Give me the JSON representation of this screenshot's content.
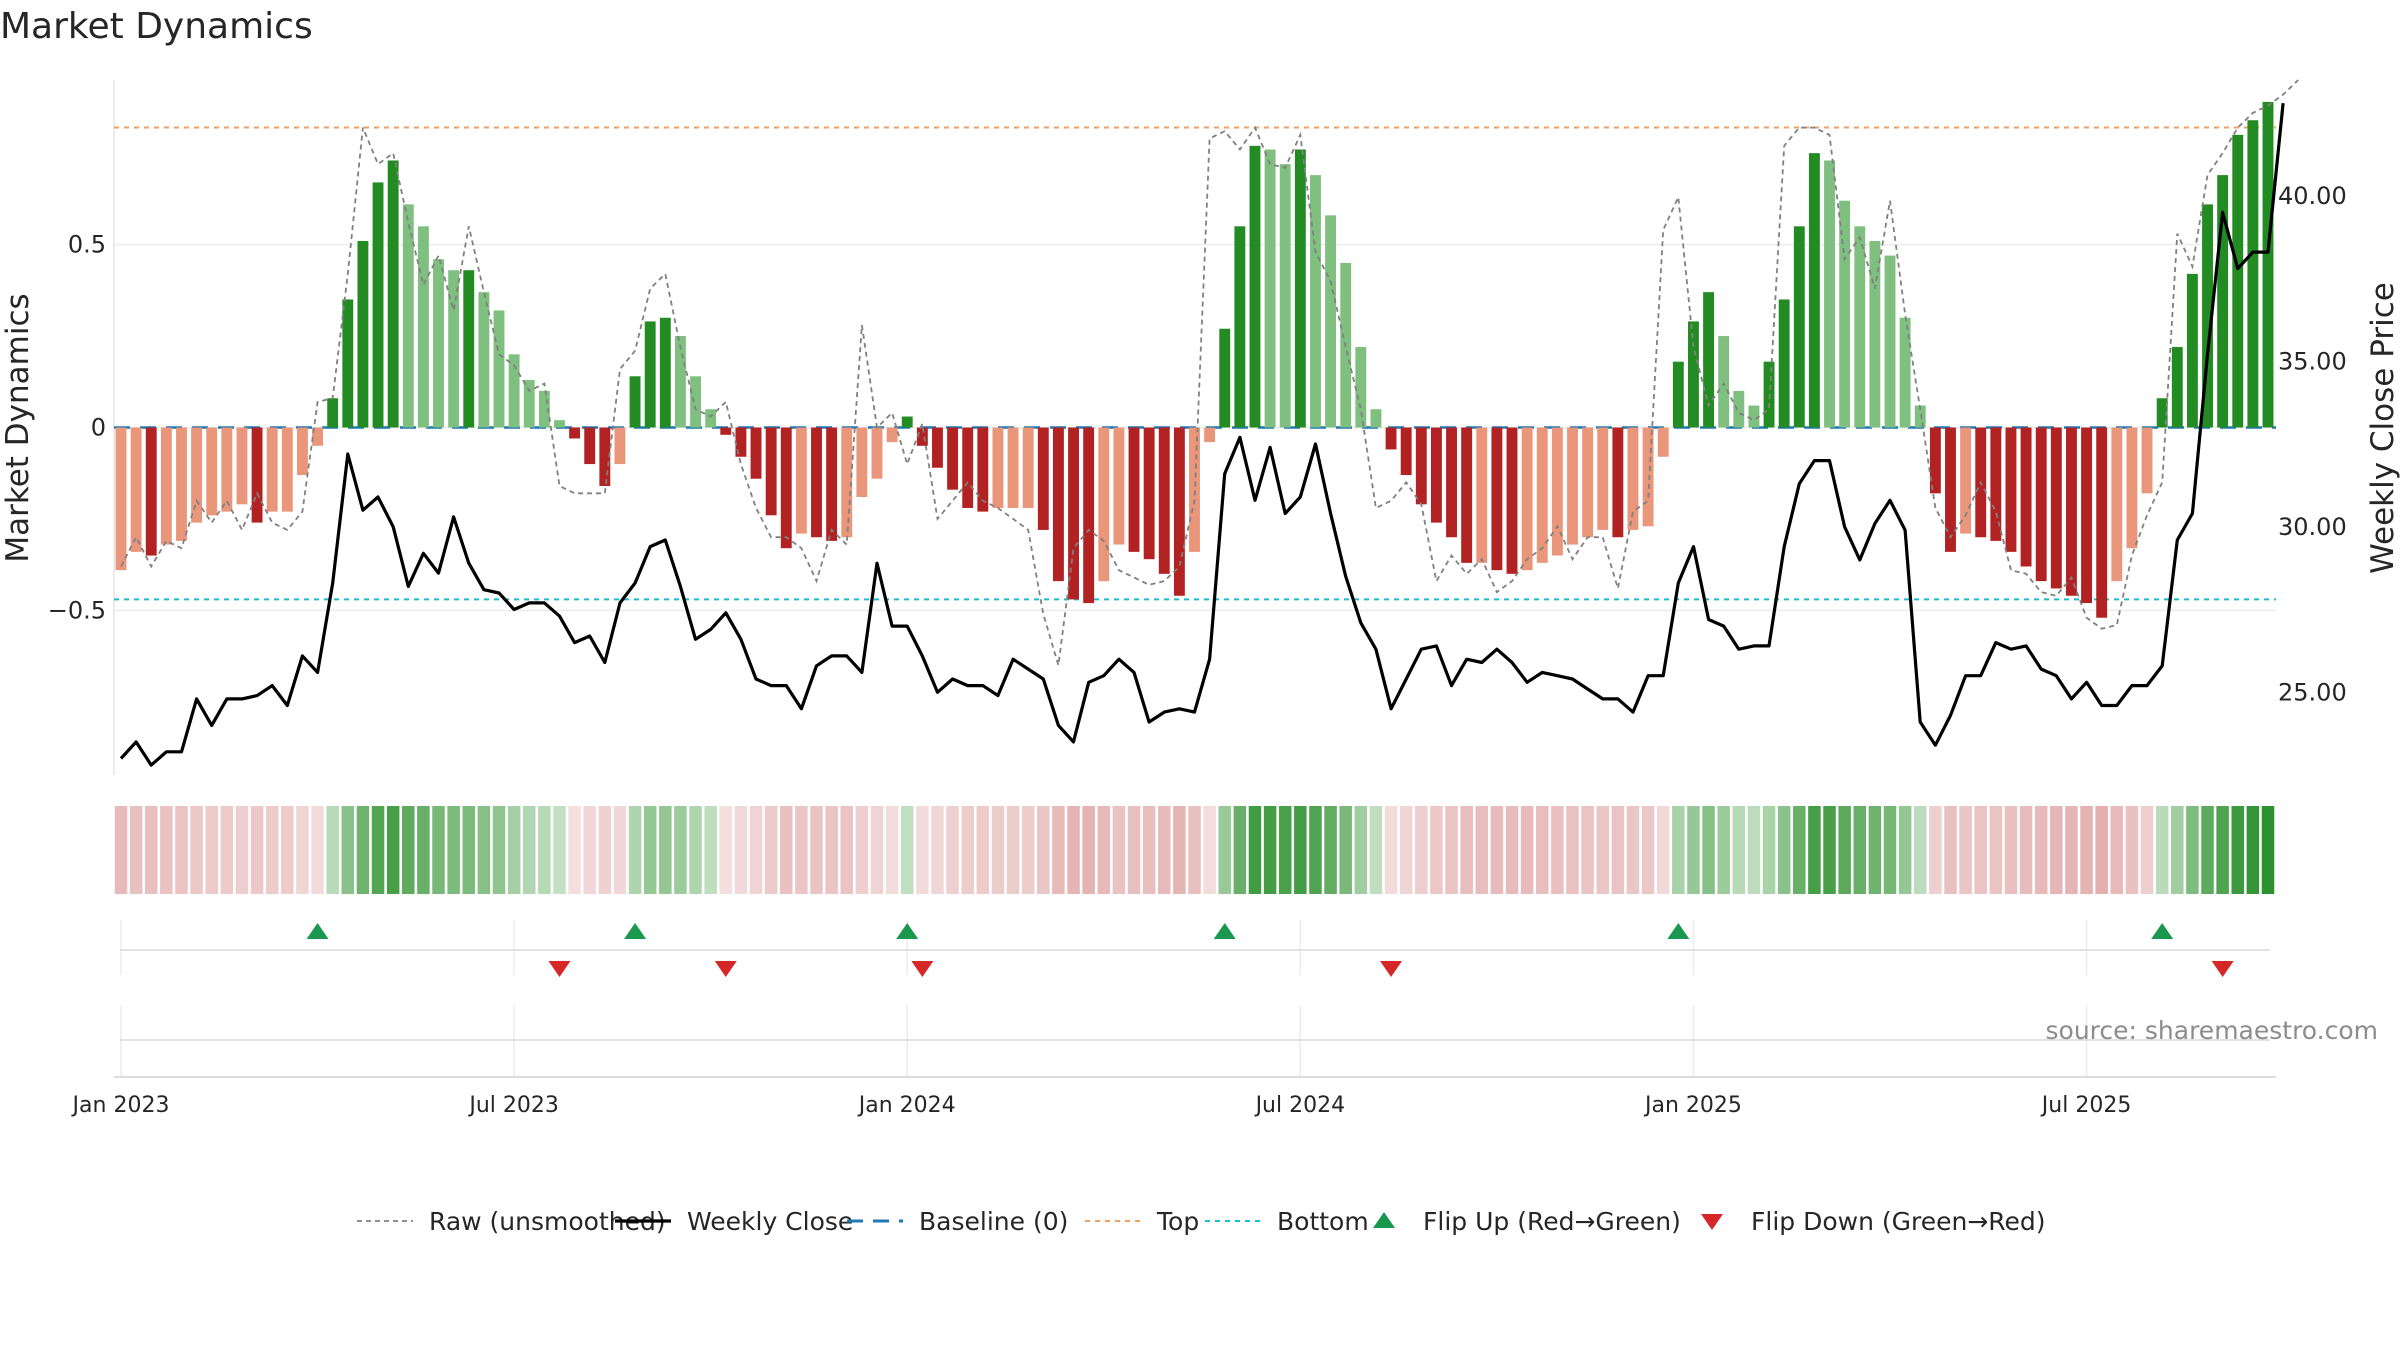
{
  "chart_data": {
    "type": "bar+line",
    "title": "Market Dynamics",
    "ylabel_left": "Market Dynamics",
    "ylabel_right": "Weekly Close Price",
    "source": "source: sharemaestro.com",
    "left_axis": {
      "ylim": [
        -0.95,
        0.95
      ],
      "ticks": [
        0.5,
        0,
        -0.5
      ],
      "tick_labels": [
        "0.5",
        "0",
        "−0.5"
      ]
    },
    "right_axis": {
      "ylim": [
        22.5,
        43.5
      ],
      "ticks": [
        40,
        35,
        30,
        25
      ],
      "tick_labels": [
        "40.00",
        "35.00",
        "30.00",
        "25.00"
      ]
    },
    "x_ticks": [
      {
        "week": 0,
        "label": "Jan 2023"
      },
      {
        "week": 26,
        "label": "Jul 2023"
      },
      {
        "week": 52,
        "label": "Jan 2024"
      },
      {
        "week": 78,
        "label": "Jul 2024"
      },
      {
        "week": 104,
        "label": "Jan 2025"
      },
      {
        "week": 130,
        "label": "Jul 2025"
      }
    ],
    "levels": {
      "top": 0.82,
      "bottom": -0.47,
      "baseline": 0
    },
    "flip_up_weeks": [
      13,
      34,
      52,
      73,
      103,
      135
    ],
    "flip_down_weeks": [
      29,
      40,
      53,
      84,
      139
    ],
    "colors": {
      "strong_green": "#228b22",
      "light_green": "#7fbf7f",
      "strong_red": "#b22222",
      "light_red": "#e9967a",
      "top": "#f0a060",
      "bottom": "#17becf",
      "baseline": "#1f77b4",
      "flip_up": "#1a9850",
      "flip_down": "#d62728",
      "close": "#000000",
      "raw": "#808080"
    },
    "bars": [
      -0.39,
      -0.34,
      -0.35,
      -0.32,
      -0.31,
      -0.26,
      -0.24,
      -0.23,
      -0.21,
      -0.26,
      -0.23,
      -0.23,
      -0.13,
      -0.05,
      0.08,
      0.35,
      0.51,
      0.67,
      0.73,
      0.61,
      0.55,
      0.46,
      0.43,
      0.43,
      0.37,
      0.32,
      0.2,
      0.13,
      0.1,
      0.02,
      -0.03,
      -0.1,
      -0.16,
      -0.1,
      0.14,
      0.29,
      0.3,
      0.25,
      0.14,
      0.05,
      -0.02,
      -0.08,
      -0.14,
      -0.24,
      -0.33,
      -0.29,
      -0.3,
      -0.31,
      -0.3,
      -0.19,
      -0.14,
      -0.04,
      0.03,
      -0.05,
      -0.11,
      -0.17,
      -0.22,
      -0.23,
      -0.22,
      -0.22,
      -0.22,
      -0.28,
      -0.42,
      -0.47,
      -0.48,
      -0.42,
      -0.32,
      -0.34,
      -0.36,
      -0.4,
      -0.46,
      -0.34,
      -0.04,
      0.27,
      0.55,
      0.77,
      0.76,
      0.72,
      0.76,
      0.69,
      0.58,
      0.45,
      0.22,
      0.05,
      -0.06,
      -0.13,
      -0.21,
      -0.26,
      -0.3,
      -0.37,
      -0.37,
      -0.39,
      -0.4,
      -0.39,
      -0.37,
      -0.35,
      -0.32,
      -0.3,
      -0.28,
      -0.3,
      -0.28,
      -0.27,
      -0.08,
      0.18,
      0.29,
      0.37,
      0.25,
      0.1,
      0.06,
      0.18,
      0.35,
      0.55,
      0.75,
      0.73,
      0.62,
      0.55,
      0.51,
      0.47,
      0.3,
      0.06,
      -0.18,
      -0.34,
      -0.29,
      -0.3,
      -0.31,
      -0.34,
      -0.38,
      -0.42,
      -0.44,
      -0.46,
      -0.48,
      -0.52,
      -0.42,
      -0.33,
      -0.18,
      0.08,
      0.22,
      0.42,
      0.61,
      0.69,
      0.8,
      0.84,
      0.89
    ],
    "raw_values": [
      -0.38,
      -0.3,
      -0.38,
      -0.31,
      -0.33,
      -0.2,
      -0.26,
      -0.2,
      -0.28,
      -0.18,
      -0.26,
      -0.28,
      -0.23,
      0.07,
      0.08,
      0.42,
      0.82,
      0.72,
      0.75,
      0.56,
      0.39,
      0.47,
      0.32,
      0.55,
      0.37,
      0.2,
      0.17,
      0.1,
      0.12,
      -0.16,
      -0.18,
      -0.18,
      -0.18,
      0.16,
      0.21,
      0.38,
      0.42,
      0.22,
      0.05,
      0.03,
      0.07,
      -0.1,
      -0.22,
      -0.3,
      -0.3,
      -0.33,
      -0.42,
      -0.28,
      -0.32,
      0.28,
      0.0,
      0.04,
      -0.1,
      0.01,
      -0.25,
      -0.2,
      -0.15,
      -0.2,
      -0.22,
      -0.25,
      -0.28,
      -0.51,
      -0.65,
      -0.33,
      -0.28,
      -0.31,
      -0.39,
      -0.41,
      -0.43,
      -0.42,
      -0.38,
      -0.2,
      0.79,
      0.81,
      0.76,
      0.82,
      0.72,
      0.71,
      0.8,
      0.48,
      0.4,
      0.22,
      0.05,
      -0.22,
      -0.2,
      -0.15,
      -0.21,
      -0.42,
      -0.35,
      -0.4,
      -0.36,
      -0.45,
      -0.42,
      -0.36,
      -0.33,
      -0.27,
      -0.36,
      -0.3,
      -0.3,
      -0.44,
      -0.23,
      -0.2,
      0.54,
      0.63,
      0.22,
      0.06,
      0.12,
      0.04,
      0.02,
      0.05,
      0.77,
      0.82,
      0.82,
      0.8,
      0.46,
      0.52,
      0.38,
      0.62,
      0.31,
      0.05,
      -0.22,
      -0.3,
      -0.24,
      -0.15,
      -0.23,
      -0.39,
      -0.4,
      -0.45,
      -0.46,
      -0.41,
      -0.52,
      -0.55,
      -0.54,
      -0.35,
      -0.24,
      -0.15,
      0.53,
      0.44,
      0.69,
      0.75,
      0.82,
      0.86,
      0.88,
      0.91,
      0.95
    ],
    "close": [
      23.0,
      23.5,
      22.8,
      23.2,
      23.2,
      24.8,
      24.0,
      24.8,
      24.8,
      24.9,
      25.2,
      24.6,
      26.1,
      25.6,
      28.3,
      32.2,
      30.5,
      30.9,
      30.0,
      28.2,
      29.2,
      28.6,
      30.3,
      28.9,
      28.1,
      28.0,
      27.5,
      27.7,
      27.7,
      27.3,
      26.5,
      26.7,
      25.9,
      27.7,
      28.3,
      29.4,
      29.6,
      28.2,
      26.6,
      26.9,
      27.4,
      26.6,
      25.4,
      25.2,
      25.2,
      24.5,
      25.8,
      26.1,
      26.1,
      25.6,
      28.9,
      27.0,
      27.0,
      26.1,
      25.0,
      25.4,
      25.2,
      25.2,
      24.9,
      26.0,
      25.7,
      25.4,
      24.0,
      23.5,
      25.3,
      25.5,
      26.0,
      25.6,
      24.1,
      24.4,
      24.5,
      24.4,
      26.0,
      31.6,
      32.7,
      30.8,
      32.4,
      30.4,
      30.9,
      32.5,
      30.4,
      28.5,
      27.1,
      26.3,
      24.5,
      25.4,
      26.3,
      26.4,
      25.2,
      26.0,
      25.9,
      26.3,
      25.9,
      25.3,
      25.6,
      25.5,
      25.4,
      25.1,
      24.8,
      24.8,
      24.4,
      25.5,
      25.5,
      28.3,
      29.4,
      27.2,
      27.0,
      26.3,
      26.4,
      26.4,
      29.4,
      31.3,
      32.0,
      32.0,
      30.0,
      29.0,
      30.1,
      30.8,
      29.9,
      24.1,
      23.4,
      24.3,
      25.5,
      25.5,
      26.5,
      26.3,
      26.4,
      25.7,
      25.5,
      24.8,
      25.3,
      24.6,
      24.6,
      25.2,
      25.2,
      25.8,
      29.6,
      30.4,
      35.2,
      39.5,
      37.8,
      38.3,
      38.3,
      42.8
    ]
  },
  "legend": [
    {
      "key": "raw",
      "label": "Raw (unsmoothed)"
    },
    {
      "key": "close",
      "label": "Weekly Close"
    },
    {
      "key": "baseline",
      "label": "Baseline (0)"
    },
    {
      "key": "top",
      "label": "Top"
    },
    {
      "key": "bottom",
      "label": "Bottom"
    },
    {
      "key": "flip_up",
      "label": "Flip Up (Red→Green)"
    },
    {
      "key": "flip_down",
      "label": "Flip Down (Green→Red)"
    }
  ]
}
